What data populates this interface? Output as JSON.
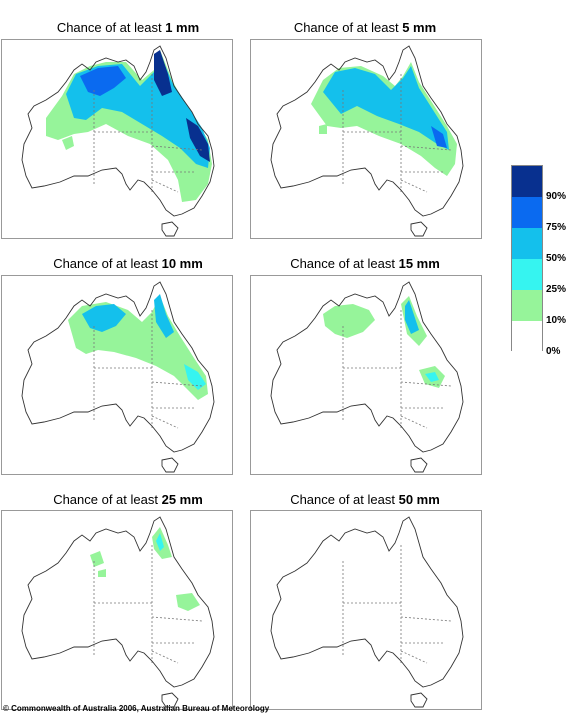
{
  "panels": [
    {
      "prefix": "Chance of at least ",
      "amount": "1 mm",
      "level": 1
    },
    {
      "prefix": "Chance of at least ",
      "amount": "5 mm",
      "level": 2
    },
    {
      "prefix": "Chance of at least ",
      "amount": "10 mm",
      "level": 3
    },
    {
      "prefix": "Chance of at least ",
      "amount": "15 mm",
      "level": 4
    },
    {
      "prefix": "Chance of at least ",
      "amount": "25 mm",
      "level": 5
    },
    {
      "prefix": "Chance of at least ",
      "amount": "50 mm",
      "level": 6
    }
  ],
  "legend": {
    "colors": [
      "#08308f",
      "#0a6af0",
      "#14c0ec",
      "#36f4f0",
      "#96f49a",
      "#ffffff"
    ],
    "ticks": [
      "90%",
      "75%",
      "50%",
      "25%",
      "10%",
      "0%"
    ]
  },
  "footer": "© Commonwealth of Australia 2006, Australian Bureau of Meteorology"
}
